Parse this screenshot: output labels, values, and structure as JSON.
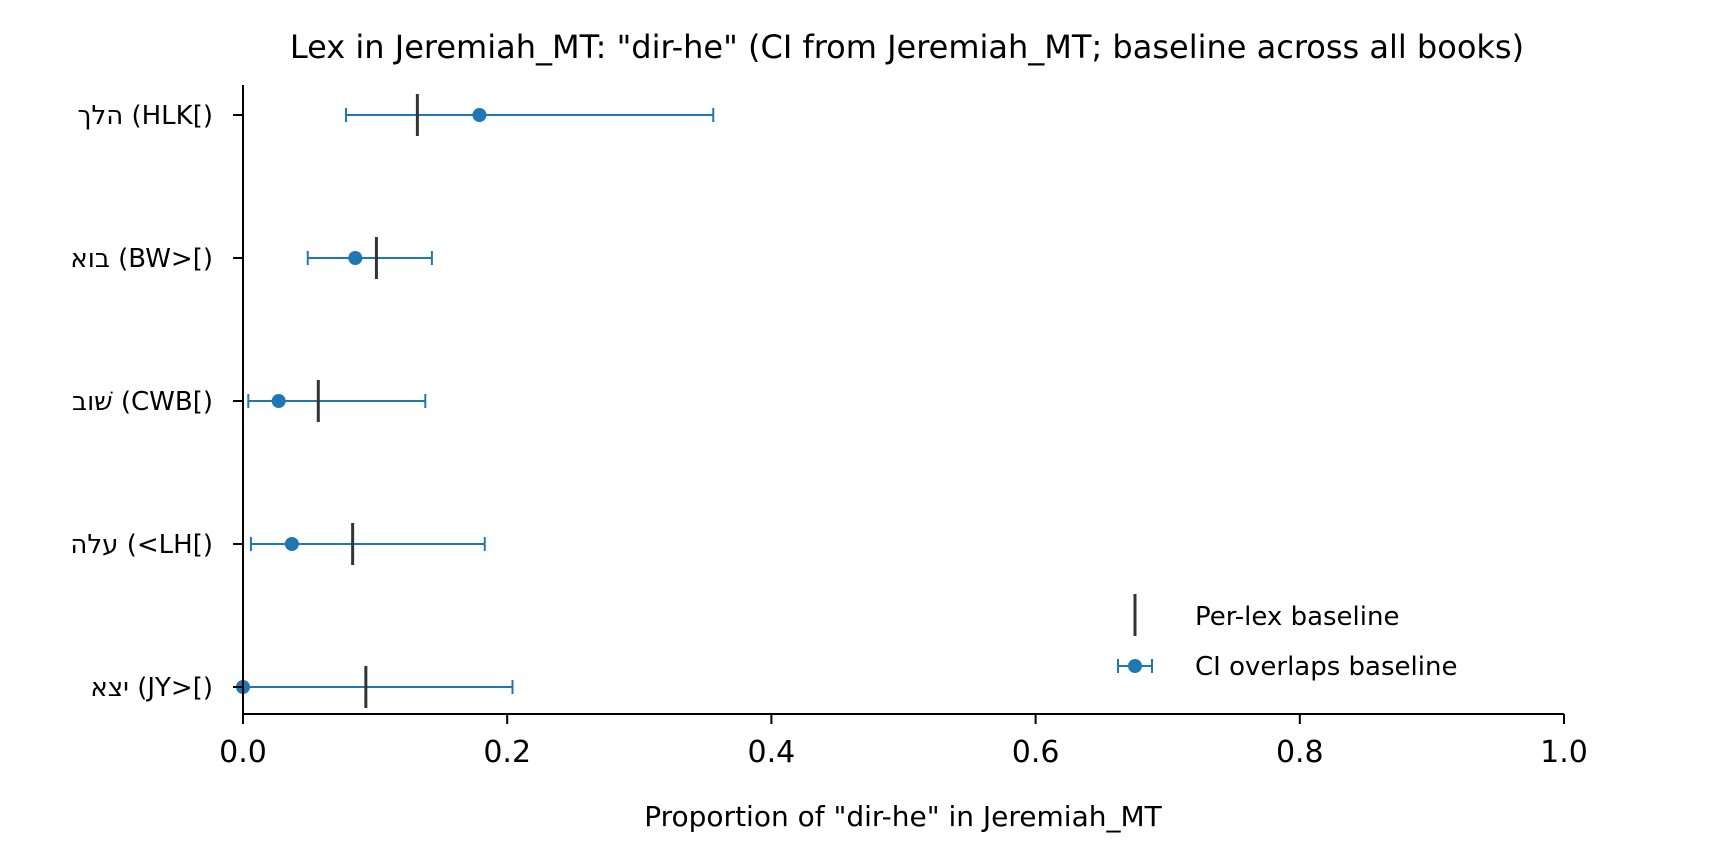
{
  "chart_data": {
    "type": "scatter",
    "title": "Lex in Jeremiah_MT: \"dir-he\" (CI from Jeremiah_MT; baseline across all books)",
    "xlabel": "Proportion of \"dir-he\" in Jeremiah_MT",
    "ylabel": "",
    "xlim": [
      0.0,
      1.0
    ],
    "xticks": [
      "0.0",
      "0.2",
      "0.4",
      "0.6",
      "0.8",
      "1.0"
    ],
    "grid": false,
    "legend_position": "lower-right",
    "categories": [
      "הלך (HLK[)",
      "בוא (BW>[)",
      "שׁוב (CWB[)",
      "עלה (<LH[)",
      "יצא (JY>[)"
    ],
    "series": [
      {
        "name": "CI overlaps baseline",
        "color": "#1f77b4",
        "values": [
          0.179,
          0.085,
          0.027,
          0.037,
          0.0
        ],
        "ci_low": [
          0.078,
          0.049,
          0.004,
          0.006,
          0.0
        ],
        "ci_high": [
          0.356,
          0.143,
          0.138,
          0.183,
          0.204
        ]
      },
      {
        "name": "Per-lex baseline",
        "color": "#333333",
        "values": [
          0.132,
          0.101,
          0.057,
          0.083,
          0.093
        ]
      }
    ]
  }
}
